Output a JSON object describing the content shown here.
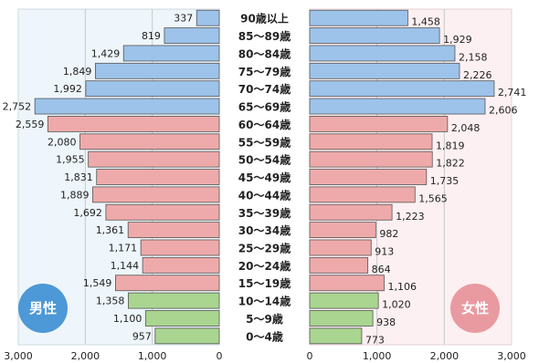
{
  "chart_data": {
    "type": "bar",
    "categories": [
      "90歳以上",
      "85〜89歳",
      "80〜84歳",
      "75〜79歳",
      "70〜74歳",
      "65〜69歳",
      "60〜64歳",
      "55〜59歳",
      "50〜54歳",
      "45〜49歳",
      "40〜44歳",
      "35〜39歳",
      "30〜34歳",
      "25〜29歳",
      "20〜24歳",
      "15〜19歳",
      "10〜14歳",
      "5〜9歳",
      "0〜4歳"
    ],
    "series": [
      {
        "name": "男性",
        "values": [
          337,
          819,
          1429,
          1849,
          1992,
          2752,
          2559,
          2080,
          1955,
          1831,
          1889,
          1692,
          1361,
          1171,
          1144,
          1549,
          1358,
          1100,
          957
        ],
        "labels": [
          "337",
          "819",
          "1,429",
          "1,849",
          "1,992",
          "2,752",
          "2,559",
          "2,080",
          "1,955",
          "1,831",
          "1,889",
          "1,692",
          "1,361",
          "1,171",
          "1,144",
          "1,549",
          "1,358",
          "1,100",
          "957"
        ]
      },
      {
        "name": "女性",
        "values": [
          1458,
          1929,
          2158,
          2226,
          2741,
          2606,
          2048,
          1819,
          1822,
          1735,
          1565,
          1223,
          982,
          913,
          864,
          1106,
          1020,
          938,
          773
        ],
        "labels": [
          "1,458",
          "1,929",
          "2,158",
          "2,226",
          "2,741",
          "2,606",
          "2,048",
          "1,819",
          "1,822",
          "1,735",
          "1,565",
          "1,223",
          "982",
          "913",
          "864",
          "1,106",
          "1,020",
          "938",
          "773"
        ]
      }
    ],
    "xlim": [
      0,
      3000
    ],
    "xticks": [
      "3,000",
      "2,000",
      "1,000",
      "0",
      "0",
      "1,000",
      "2,000",
      "3,000"
    ],
    "colors": {
      "elderly": "#9dc3ea",
      "working": "#eeaaaa",
      "youth": "#a9d590",
      "male_bg": "#eef6fb",
      "female_bg": "#fdf0f2",
      "male_badge": "#4d98d6",
      "female_badge": "#e99aa0"
    }
  },
  "legend": {
    "male": "男性",
    "female": "女性"
  }
}
